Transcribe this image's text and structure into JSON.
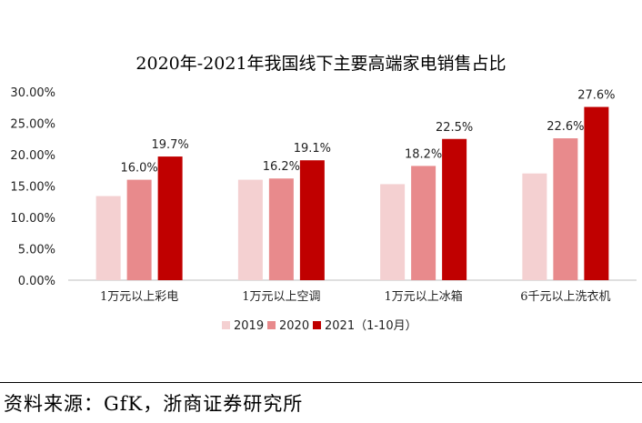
{
  "chart_data": {
    "type": "bar",
    "title": "2020年-2021年我国线下主要高端家电销售占比",
    "categories": [
      "1万元以上彩电",
      "1万元以上空调",
      "1万元以上冰箱",
      "6千元以上洗衣机"
    ],
    "series": [
      {
        "name": "2019",
        "color": "#f4d0d1",
        "values": [
          13.4,
          16.0,
          15.3,
          17.0
        ],
        "labels": [
          "",
          "",
          "",
          ""
        ]
      },
      {
        "name": "2020",
        "color": "#e88a8c",
        "values": [
          16.0,
          16.2,
          18.2,
          22.6
        ],
        "labels": [
          "16.0%",
          "16.2%",
          "18.2%",
          "22.6%"
        ]
      },
      {
        "name": "2021（1-10月）",
        "color": "#c00000",
        "values": [
          19.7,
          19.1,
          22.5,
          27.6
        ],
        "labels": [
          "19.7%",
          "19.1%",
          "22.5%",
          "27.6%"
        ]
      }
    ],
    "yticks": [
      "0.00%",
      "5.00%",
      "10.00%",
      "15.00%",
      "20.00%",
      "25.00%",
      "30.00%"
    ],
    "ylim": [
      0,
      30
    ],
    "grid": false,
    "legend": "bottom"
  },
  "source_text": "资料来源：GfK，浙商证券研究所"
}
